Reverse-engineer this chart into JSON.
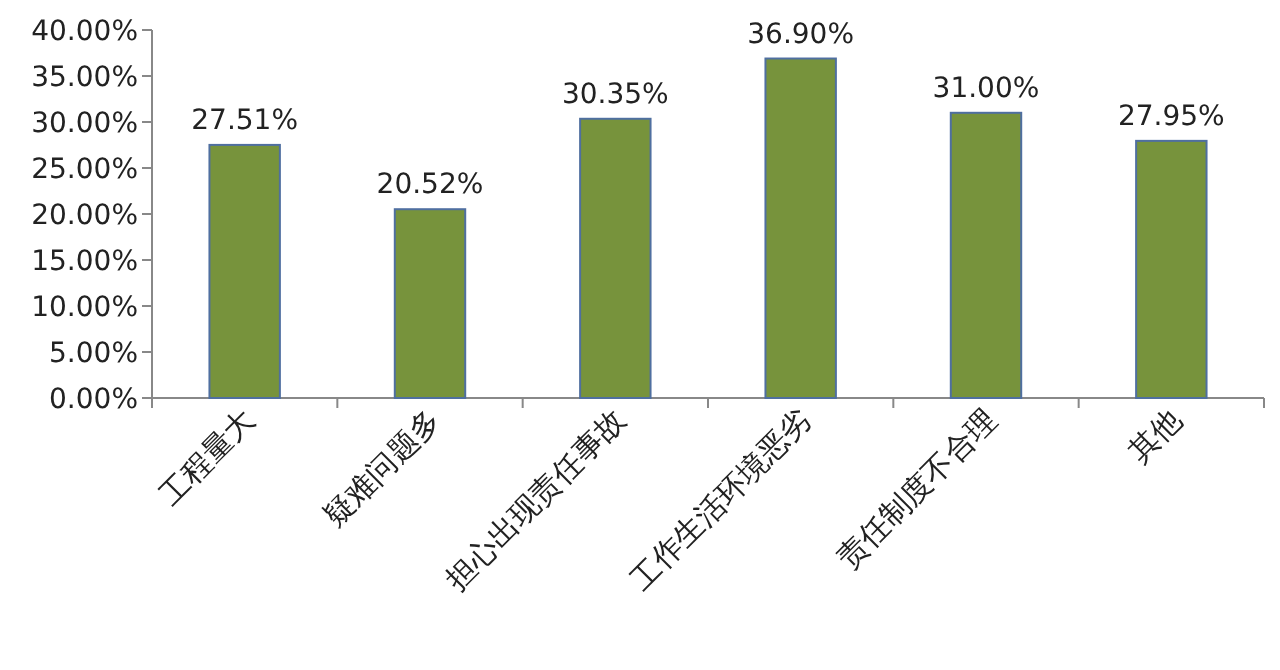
{
  "chart_data": {
    "type": "bar",
    "categories": [
      "工程量大",
      "疑难问题多",
      "担心出现责任事故",
      "工作生活环境恶劣",
      "责任制度不合理",
      "其他"
    ],
    "values": [
      27.51,
      20.52,
      30.35,
      36.9,
      31.0,
      27.95
    ],
    "value_labels": [
      "27.51%",
      "20.52%",
      "30.35%",
      "36.90%",
      "31.00%",
      "27.95%"
    ],
    "color": "#77933c",
    "ylim": [
      0,
      40
    ],
    "yticks": [
      {
        "value": 0,
        "label": "0.00%"
      },
      {
        "value": 5,
        "label": "5.00%"
      },
      {
        "value": 10,
        "label": "10.00%"
      },
      {
        "value": 15,
        "label": "15.00%"
      },
      {
        "value": 20,
        "label": "20.00%"
      },
      {
        "value": 25,
        "label": "25.00%"
      },
      {
        "value": 30,
        "label": "30.00%"
      },
      {
        "value": 35,
        "label": "35.00%"
      },
      {
        "value": 40,
        "label": "40.00%"
      }
    ]
  }
}
